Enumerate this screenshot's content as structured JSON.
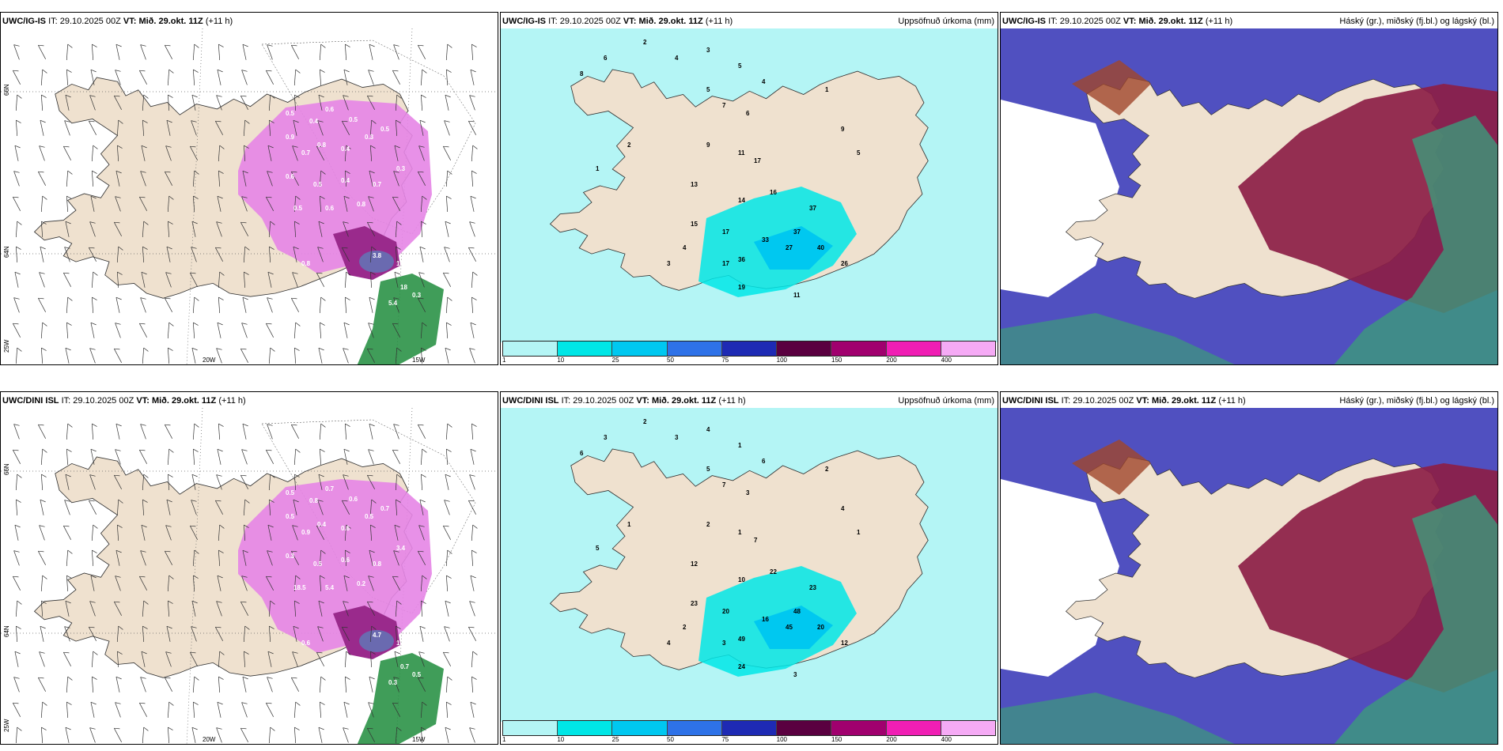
{
  "rows": [
    {
      "model": "UWC/IG-IS",
      "it_label": "IT:",
      "it_value": "29.10.2025 00Z",
      "vt_label": "VT:",
      "vt_value": "Mið. 29.okt. 11Z",
      "lead": "(+11 h)",
      "p2_right": "Uppsöfnuð úrkoma (mm)",
      "p3_right": "Háský (gr.), miðský (fj.bl.) og lágský (bl.)",
      "axis": {
        "lat66": "66N",
        "lat64": "64N",
        "lon25": "25W",
        "lon20": "20W",
        "lon15": "15W"
      },
      "left_values": [
        "0.5",
        "0.4",
        "0.6",
        "0.5",
        "0.9",
        "0.7",
        "0.8",
        "0.4",
        "0.3",
        "0.5",
        "0.6",
        "0.5",
        "0.4",
        "0.7",
        "0.3",
        "0.5",
        "0.6",
        "0.8",
        "3.8",
        "14.5",
        "0.8",
        "18",
        "0.3",
        "5.4"
      ],
      "mid_values": [
        "2",
        "4",
        "3",
        "5",
        "4",
        "5",
        "7",
        "6",
        "9",
        "11",
        "17",
        "13",
        "14",
        "16",
        "15",
        "17",
        "33",
        "37",
        "36",
        "27",
        "40",
        "26",
        "37",
        "19",
        "17",
        "4",
        "3",
        "2",
        "1",
        "8",
        "6",
        "1",
        "9",
        "5",
        "11"
      ]
    },
    {
      "model": "UWC/DINI ISL",
      "it_label": "IT:",
      "it_value": "29.10.2025 00Z",
      "vt_label": "VT:",
      "vt_value": "Mið. 29.okt. 11Z",
      "lead": "(+11 h)",
      "p2_right": "Uppsöfnuð úrkoma (mm)",
      "p3_right": "Háský (gr.), miðský (fj.bl.) og lágský (bl.)",
      "axis": {
        "lat66": "66N",
        "lat64": "64N",
        "lon25": "25W",
        "lon20": "20W",
        "lon15": "15W"
      },
      "left_values": [
        "0.5",
        "0.8",
        "0.7",
        "0.6",
        "0.5",
        "0.9",
        "0.4",
        "0.6",
        "0.5",
        "0.7",
        "0.3",
        "0.5",
        "0.6",
        "0.8",
        "3.4",
        "18.5",
        "5.4",
        "0.2",
        "4.7",
        "1.4",
        "0.6",
        "0.7",
        "0.5",
        "0.3"
      ],
      "mid_values": [
        "2",
        "3",
        "4",
        "1",
        "6",
        "5",
        "7",
        "3",
        "2",
        "1",
        "7",
        "12",
        "10",
        "22",
        "23",
        "20",
        "16",
        "48",
        "49",
        "45",
        "20",
        "12",
        "23",
        "24",
        "3",
        "2",
        "4",
        "1",
        "5",
        "6",
        "3",
        "2",
        "4",
        "1",
        "3"
      ]
    }
  ],
  "colorbar": {
    "ticks": [
      "1",
      "10",
      "25",
      "50",
      "75",
      "100",
      "150",
      "200",
      "400"
    ],
    "colors": [
      "#b4f5f5",
      "#00e6e6",
      "#00c8f0",
      "#2e72e8",
      "#1e2ab4",
      "#5a0040",
      "#a0006e",
      "#f01eb4",
      "#f5aaf5"
    ]
  },
  "colors": {
    "land": "#efe1cf",
    "sea": "#ffffff",
    "precip_light": "#e685e6",
    "precip_core": "#9a2a8c",
    "green": "#1e8c3c",
    "cyan_light": "#b4f5f5",
    "cyan": "#00e6e6",
    "cloud_high": "#5050c0",
    "cloud_mid": "#8c1e46",
    "cloud_low": "#3c9a7a"
  }
}
